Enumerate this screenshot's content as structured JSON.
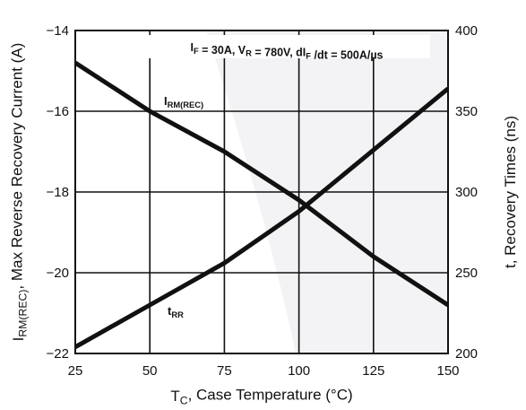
{
  "chart_data": {
    "type": "line",
    "annotation": {
      "parts": [
        {
          "t": "I",
          "sub": "F"
        },
        {
          "t": " = 30A, V",
          "sub": "R"
        },
        {
          "t": " = 780V, dI",
          "sub": "F"
        },
        {
          "t": " /dt = 500A/µs"
        }
      ]
    },
    "x_axis": {
      "label": "T",
      "label_sub": "C",
      "label_rest": ", Case Temperature (°C)",
      "range": [
        25,
        150
      ],
      "ticks": [
        "25",
        "50",
        "75",
        "100",
        "125",
        "150"
      ]
    },
    "y_left": {
      "label_main": "I",
      "label_sub": "RM(REC)",
      "label_rest": ", Max Reverse Recovery Current (A)",
      "range": [
        -22,
        -14
      ],
      "ticks": [
        "−14",
        "−16",
        "−18",
        "−20",
        "−22"
      ]
    },
    "y_right": {
      "label": "t, Recovery Times (ns)",
      "range": [
        200,
        400
      ],
      "ticks": [
        "400",
        "350",
        "300",
        "250",
        "200"
      ]
    },
    "grid": true,
    "series": [
      {
        "name": "I",
        "name_sub": "RM(REC)",
        "axis": "left",
        "x": [
          25,
          50,
          75,
          100,
          125,
          150
        ],
        "y": [
          -14.8,
          -16.0,
          -17.0,
          -18.2,
          -19.6,
          -20.8
        ]
      },
      {
        "name": "t",
        "name_sub": "RR",
        "axis": "right",
        "x": [
          25,
          50,
          75,
          100,
          125,
          150
        ],
        "y": [
          204,
          230,
          256,
          288,
          326,
          364
        ]
      }
    ]
  }
}
